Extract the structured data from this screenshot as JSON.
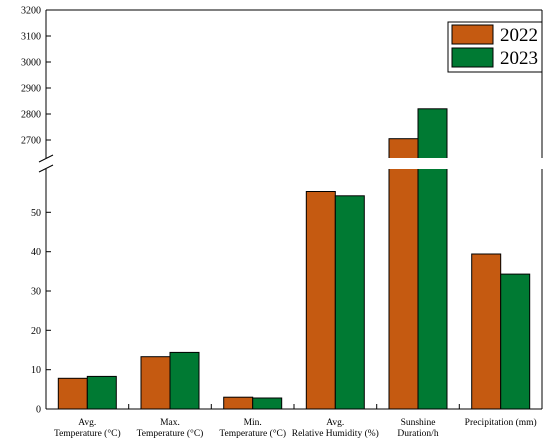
{
  "chart_data": {
    "type": "bar",
    "categories": [
      [
        "Avg.",
        "Temperature (°C)"
      ],
      [
        "Max.",
        "Temperature (°C)"
      ],
      [
        "Min.",
        "Temperature (°C)"
      ],
      [
        "Avg.",
        "Relative Humidity (%)"
      ],
      [
        "Sunshine",
        "Duration/h"
      ],
      [
        "Precipitation (mm)"
      ]
    ],
    "series": [
      {
        "name": "2022",
        "color": "#c55a11",
        "values": [
          7.8,
          13.3,
          3.0,
          55.3,
          2705,
          39.4
        ]
      },
      {
        "name": "2023",
        "color": "#007a33",
        "values": [
          8.3,
          14.4,
          2.8,
          54.2,
          2820,
          34.3
        ]
      }
    ],
    "axis_break": true,
    "lower_ylim": [
      0,
      60
    ],
    "lower_ticks": [
      0,
      10,
      20,
      30,
      40,
      50
    ],
    "upper_ylim": [
      2650,
      3200
    ],
    "upper_ticks": [
      2700,
      2800,
      2900,
      3000,
      3100,
      3200
    ],
    "legend_position": "top-right",
    "title": "",
    "xlabel": "",
    "ylabel": ""
  }
}
